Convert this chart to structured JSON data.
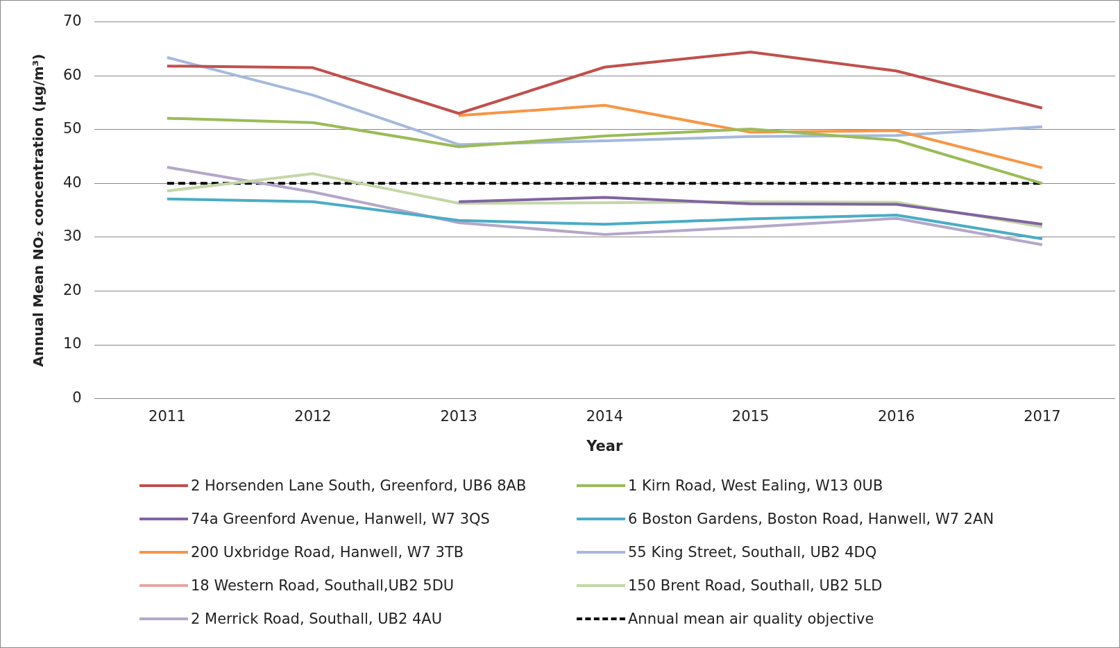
{
  "chart_data": {
    "type": "line",
    "xlabel": "Year",
    "ylabel": "Annual Mean NO₂ concentration (µg/m³)",
    "categories": [
      "2011",
      "2012",
      "2013",
      "2014",
      "2015",
      "2016",
      "2017"
    ],
    "ylim": [
      0,
      70
    ],
    "yticks": [
      0,
      10,
      20,
      30,
      40,
      50,
      60,
      70
    ],
    "grid": "y",
    "legend": "bottom",
    "line_style": "solid",
    "series": [
      {
        "name": "2 Horsenden Lane South, Greenford, UB6 8AB",
        "color": "#c0504d",
        "values": [
          61.8,
          61.5,
          53,
          61.6,
          64.4,
          60.9,
          54
        ]
      },
      {
        "name": "1 Kirn Road, West Ealing, W13 0UB",
        "color": "#9bbb59",
        "values": [
          52.1,
          51.3,
          46.8,
          48.8,
          50.1,
          48,
          40
        ]
      },
      {
        "name": "74a Greenford Avenue, Hanwell, W7 3QS",
        "color": "#8064a2",
        "values": [
          null,
          null,
          36.6,
          37.4,
          36.2,
          36.1,
          32.4
        ]
      },
      {
        "name": "6 Boston Gardens, Boston Road, Hanwell, W7 2AN",
        "color": "#4bacc6",
        "values": [
          37.1,
          36.6,
          33.1,
          32.4,
          33.4,
          34.1,
          29.7
        ]
      },
      {
        "name": "200 Uxbridge Road, Hanwell, W7 3TB",
        "color": "#f79646",
        "values": [
          null,
          null,
          52.6,
          54.5,
          49.5,
          49.8,
          42.9
        ]
      },
      {
        "name": "55 King Street, Southall, UB2 4DQ",
        "color": "#a5b9dc",
        "values": [
          63.4,
          56.4,
          47.2,
          47.9,
          48.7,
          48.9,
          50.5
        ]
      },
      {
        "name": "18 Western Road, Southall,UB2 5DU",
        "color": "#e6a5a4",
        "values": [
          null,
          null,
          null,
          null,
          null,
          null,
          null
        ]
      },
      {
        "name": "150 Brent Road, Southall, UB2 5LD",
        "color": "#c4d7a8",
        "values": [
          38.6,
          41.8,
          36.3,
          36.4,
          36.6,
          36.5,
          31.9
        ]
      },
      {
        "name": "2 Merrick Road, Southall, UB2 4AU",
        "color": "#b4a7c8",
        "values": [
          43,
          38.4,
          32.7,
          30.5,
          31.9,
          33.5,
          28.6
        ]
      }
    ],
    "ref_lines": [
      {
        "axis": "y",
        "value": 40,
        "label": "Annual mean air quality objective",
        "color": "#000000",
        "line_style": "dashed"
      }
    ]
  }
}
